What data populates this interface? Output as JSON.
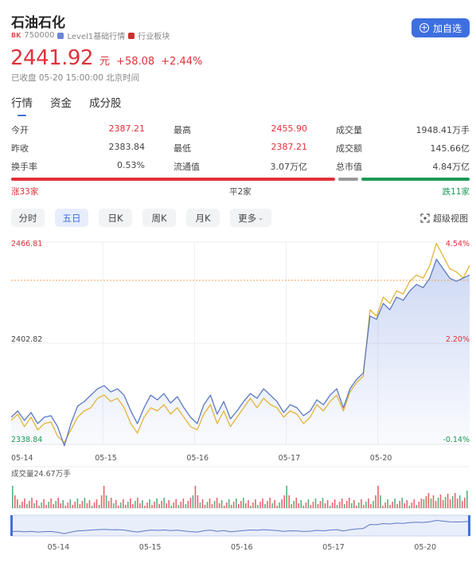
{
  "header": {
    "title": "石油石化",
    "badge": "BK",
    "code": "750000",
    "tag1": "Level1基础行情",
    "tag2": "行业板块",
    "follow_label": "加自选"
  },
  "quote": {
    "price": "2441.92",
    "unit": "元",
    "change": "+58.08",
    "change_pct": "+2.44%",
    "status": "已收盘 05-20 15:00:00 北京时间"
  },
  "tabs": [
    "行情",
    "资金",
    "成分股"
  ],
  "stats": [
    [
      {
        "label": "今开",
        "value": "2387.21"
      },
      {
        "label": "最高",
        "value": "2455.90"
      },
      {
        "label": "成交量",
        "value": "1948.41万手"
      }
    ],
    [
      {
        "label": "昨收",
        "value": "2383.84"
      },
      {
        "label": "最低",
        "value": "2387.21"
      },
      {
        "label": "成交额",
        "value": "145.66亿"
      }
    ],
    [
      {
        "label": "换手率",
        "value": "0.53%"
      },
      {
        "label": "流通值",
        "value": "3.07万亿"
      },
      {
        "label": "总市值",
        "value": "4.84万亿"
      }
    ]
  ],
  "breadth": {
    "up_label": "涨33家",
    "flat_label": "平2家",
    "down_label": "跌11家",
    "up": 33,
    "flat": 2,
    "down": 11,
    "colors": {
      "up": "#e0313a",
      "flat": "#999999",
      "down": "#1b9a55"
    }
  },
  "period_tabs": [
    "分时",
    "五日",
    "日K",
    "周K",
    "月K",
    "更多"
  ],
  "active_period": "五日",
  "super_view": "超级视图",
  "chart_data": {
    "type": "line",
    "y_labels": {
      "top": "2466.81",
      "mid": "2402.82",
      "bottom": "2338.84"
    },
    "pct_labels": {
      "top": "4.54%",
      "mid": "2.20%",
      "bottom": "-0.14%"
    },
    "ylim": [
      2338.84,
      2466.81
    ],
    "prev_close": 2383.84,
    "x_labels": [
      "05-14",
      "05-15",
      "05-16",
      "05-17",
      "05-20"
    ],
    "series": [
      {
        "color": "#5b78c2",
        "values": [
          2356,
          2360,
          2354,
          2359,
          2352,
          2356,
          2357,
          2350,
          2338,
          2352,
          2363,
          2366,
          2370,
          2374,
          2376,
          2372,
          2374,
          2370,
          2360,
          2352,
          2362,
          2370,
          2367,
          2371,
          2365,
          2369,
          2362,
          2356,
          2352,
          2364,
          2370,
          2358,
          2366,
          2355,
          2360,
          2366,
          2371,
          2368,
          2374,
          2370,
          2366,
          2359,
          2364,
          2362,
          2357,
          2360,
          2367,
          2364,
          2370,
          2374,
          2362,
          2374,
          2380,
          2384,
          2420,
          2418,
          2428,
          2424,
          2432,
          2430,
          2436,
          2440,
          2438,
          2444,
          2456,
          2450,
          2444,
          2442,
          2444,
          2446
        ]
      },
      {
        "color": "#e3b43a",
        "values": [
          2354,
          2358,
          2350,
          2356,
          2348,
          2352,
          2353,
          2344,
          2340,
          2348,
          2356,
          2360,
          2362,
          2368,
          2370,
          2366,
          2368,
          2362,
          2352,
          2346,
          2356,
          2362,
          2360,
          2364,
          2358,
          2362,
          2356,
          2350,
          2348,
          2358,
          2364,
          2352,
          2360,
          2350,
          2356,
          2362,
          2368,
          2362,
          2368,
          2364,
          2362,
          2356,
          2360,
          2358,
          2352,
          2356,
          2364,
          2360,
          2366,
          2370,
          2360,
          2372,
          2378,
          2382,
          2424,
          2420,
          2432,
          2428,
          2436,
          2434,
          2442,
          2446,
          2444,
          2452,
          2466,
          2458,
          2450,
          2448,
          2444,
          2452
        ]
      }
    ],
    "volume_label": "成交量24.67万手",
    "nav_x_labels": [
      "05-14",
      "05-15",
      "05-16",
      "05-17",
      "05-20"
    ]
  }
}
